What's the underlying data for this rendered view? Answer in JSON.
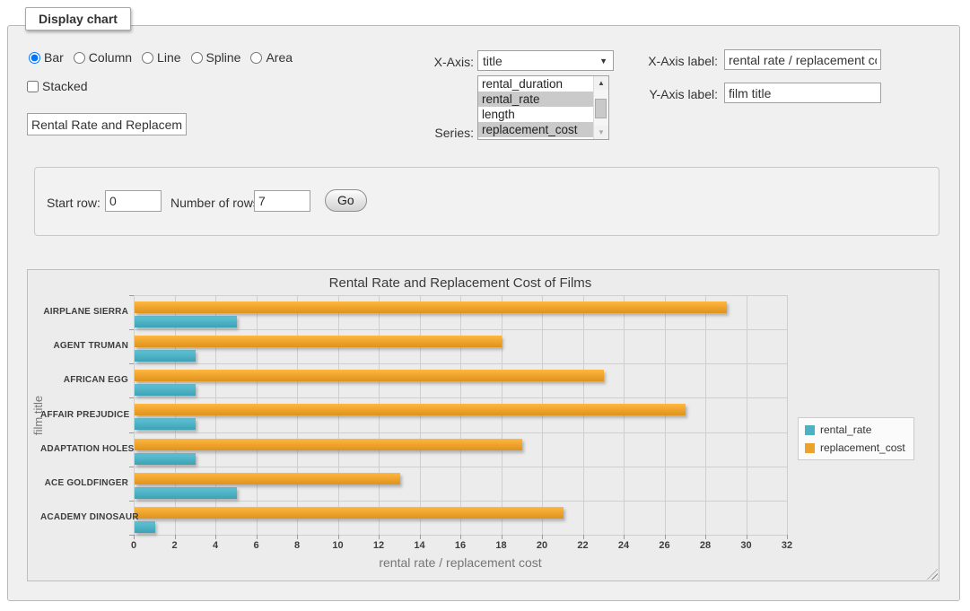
{
  "form": {
    "legend": "Display chart",
    "chart_types": {
      "options": [
        "Bar",
        "Column",
        "Line",
        "Spline",
        "Area"
      ],
      "selected": "Bar"
    },
    "stacked": {
      "label": "Stacked",
      "checked": false
    },
    "chart_title_input": {
      "value": "Rental Rate and Replacement Cost of Films"
    },
    "x_axis": {
      "label": "X-Axis:",
      "selected": "title"
    },
    "series_select": {
      "label": "Series:",
      "options": [
        {
          "label": "rental_duration",
          "selected": false
        },
        {
          "label": "rental_rate",
          "selected": true
        },
        {
          "label": "length",
          "selected": false
        },
        {
          "label": "replacement_cost",
          "selected": true
        }
      ]
    },
    "x_axis_label": {
      "label": "X-Axis label:",
      "value": "rental rate / replacement cost"
    },
    "y_axis_label": {
      "label": "Y-Axis label:",
      "value": "film title"
    }
  },
  "rows_form": {
    "start_row_label": "Start row:",
    "start_row_value": "0",
    "number_of_rows_label": "Number of rows:",
    "number_of_rows_value": "7",
    "go_label": "Go"
  },
  "icons": {
    "dropdown_arrow": "▼",
    "scroll_up": "▲",
    "scroll_down": "▼"
  },
  "colors": {
    "rental_rate": "#4db1c4",
    "replacement_cost": "#eda32b",
    "panel_bg": "#ececec",
    "grid": "#cfcfcf"
  },
  "chart_data": {
    "type": "bar",
    "orientation": "horizontal",
    "title": "Rental Rate and Replacement Cost of Films",
    "xlabel": "rental rate / replacement cost",
    "ylabel": "film title",
    "categories_order": "top-to-bottom",
    "categories": [
      "AIRPLANE SIERRA",
      "AGENT TRUMAN",
      "AFRICAN EGG",
      "AFFAIR PREJUDICE",
      "ADAPTATION HOLES",
      "ACE GOLDFINGER",
      "ACADEMY DINOSAUR"
    ],
    "series": [
      {
        "name": "rental_rate",
        "color": "#4db1c4",
        "values": [
          4.99,
          2.99,
          2.99,
          2.99,
          2.99,
          4.99,
          0.99
        ]
      },
      {
        "name": "replacement_cost",
        "color": "#eda32b",
        "values": [
          28.99,
          17.99,
          22.99,
          26.99,
          18.99,
          12.99,
          20.99
        ]
      }
    ],
    "xlim": [
      0,
      32
    ],
    "xtick_step": 2,
    "grid": true,
    "legend_position": "right"
  }
}
